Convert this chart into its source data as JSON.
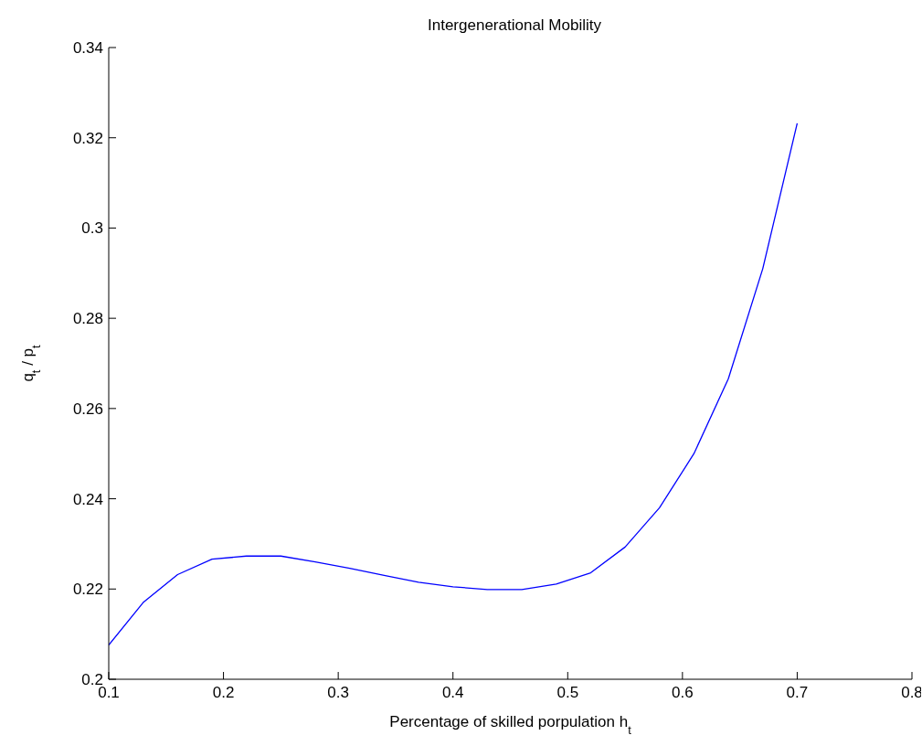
{
  "chart_data": {
    "type": "line",
    "title": "Intergenerational Mobility",
    "xlabel": "Percentage of skilled porpulation h$_{t}$",
    "ylabel": "q$_{t}$ / p$_{t}$",
    "x": [
      0.1,
      0.13,
      0.16,
      0.19,
      0.22,
      0.25,
      0.28,
      0.31,
      0.34,
      0.37,
      0.4,
      0.43,
      0.46,
      0.49,
      0.52,
      0.55,
      0.58,
      0.61,
      0.64,
      0.67,
      0.7
    ],
    "series": [
      {
        "color": "#0000ff",
        "values": [
          0.2076,
          0.217,
          0.2232,
          0.2266,
          0.2273,
          0.2273,
          0.226,
          0.2246,
          0.223,
          0.2215,
          0.2205,
          0.2199,
          0.2199,
          0.2211,
          0.2236,
          0.2293,
          0.238,
          0.25,
          0.2666,
          0.291,
          0.3232
        ]
      }
    ],
    "xlim": [
      0.1,
      0.8
    ],
    "xticks": [
      0.1,
      0.2,
      0.3,
      0.4,
      0.5,
      0.6,
      0.7,
      0.8
    ],
    "ylim": [
      0.2,
      0.34
    ],
    "yticks": [
      0.2,
      0.22,
      0.24,
      0.26,
      0.28,
      0.3,
      0.32,
      0.34
    ],
    "grid": false,
    "legend": false,
    "marker": "none",
    "line_style": "solid"
  }
}
